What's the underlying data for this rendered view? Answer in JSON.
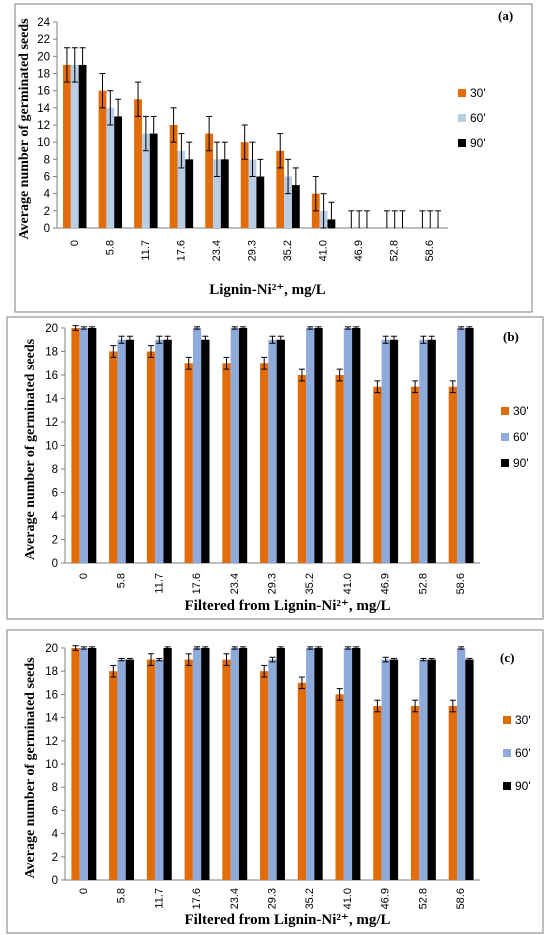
{
  "chart_data": [
    {
      "type": "bar",
      "panel_label": "(a)",
      "xlabel": "Lignin-Ni²⁺, mg/L",
      "ylabel": "Average number of germinated seeds",
      "ylim": [
        0,
        24
      ],
      "yticks": [
        0,
        2,
        4,
        6,
        8,
        10,
        12,
        14,
        16,
        18,
        20,
        22,
        24
      ],
      "categories": [
        "0",
        "5.8",
        "11.7",
        "17.6",
        "23.4",
        "29.3",
        "35.2",
        "41.0",
        "46.9",
        "52.8",
        "58.6"
      ],
      "grid": false,
      "legend_position": "right",
      "series": [
        {
          "name": "30'",
          "color": "#e36c0a",
          "values": [
            19,
            16,
            15,
            12,
            11,
            10,
            9,
            4,
            0,
            0,
            0
          ],
          "errors": [
            2,
            2,
            2,
            2,
            2,
            2,
            2,
            2,
            2,
            2,
            2
          ]
        },
        {
          "name": "60'",
          "color": "#b9cde5",
          "values": [
            19,
            14,
            11,
            9,
            8,
            8,
            6,
            2,
            0,
            0,
            0
          ],
          "errors": [
            2,
            2,
            2,
            2,
            2,
            2,
            2,
            2,
            2,
            2,
            2
          ]
        },
        {
          "name": "90'",
          "color": "#000000",
          "values": [
            19,
            13,
            11,
            8,
            8,
            6,
            5,
            1,
            0,
            0,
            0
          ],
          "errors": [
            2,
            2,
            2,
            2,
            2,
            2,
            2,
            2,
            2,
            2,
            2
          ]
        }
      ]
    },
    {
      "type": "bar",
      "panel_label": "(b)",
      "xlabel": "Filtered from Lignin-Ni²⁺, mg/L",
      "ylabel": "Average number of germinated seeds",
      "ylim": [
        0,
        20
      ],
      "yticks": [
        0,
        2,
        4,
        6,
        8,
        10,
        12,
        14,
        16,
        18,
        20
      ],
      "categories": [
        "0",
        "5.8",
        "11.7",
        "17.6",
        "23.4",
        "29.3",
        "35.2",
        "41.0",
        "46.9",
        "52.8",
        "58.6"
      ],
      "grid": false,
      "legend_position": "right",
      "series": [
        {
          "name": "30'",
          "color": "#e36c0a",
          "values": [
            20,
            18,
            18,
            17,
            17,
            17,
            16,
            16,
            15,
            15,
            15
          ],
          "errors": [
            0.2,
            0.5,
            0.5,
            0.5,
            0.5,
            0.5,
            0.5,
            0.5,
            0.5,
            0.5,
            0.5
          ]
        },
        {
          "name": "60'",
          "color": "#8eaadb",
          "values": [
            20,
            19,
            19,
            20,
            20,
            19,
            20,
            20,
            19,
            19,
            20
          ],
          "errors": [
            0.1,
            0.3,
            0.3,
            0.1,
            0.1,
            0.3,
            0.1,
            0.1,
            0.3,
            0.3,
            0.1
          ]
        },
        {
          "name": "90'",
          "color": "#000000",
          "values": [
            20,
            19,
            19,
            19,
            20,
            19,
            20,
            20,
            19,
            19,
            20
          ],
          "errors": [
            0.1,
            0.3,
            0.3,
            0.3,
            0.1,
            0.3,
            0.1,
            0.1,
            0.3,
            0.3,
            0.1
          ]
        }
      ]
    },
    {
      "type": "bar",
      "panel_label": "(c)",
      "xlabel": "Filtered from Lignin-Ni²⁺, mg/L",
      "ylabel": "Average number of germinated seeds",
      "ylim": [
        0,
        20
      ],
      "yticks": [
        0,
        2,
        4,
        6,
        8,
        10,
        12,
        14,
        16,
        18,
        20
      ],
      "categories": [
        "0",
        "5.8",
        "11.7",
        "17.6",
        "23.4",
        "29.3",
        "35.2",
        "41.0",
        "46.9",
        "52.8",
        "58.6"
      ],
      "grid": false,
      "legend_position": "right",
      "series": [
        {
          "name": "30'",
          "color": "#e36c0a",
          "values": [
            20,
            18,
            19,
            19,
            19,
            18,
            17,
            16,
            15,
            15,
            15
          ],
          "errors": [
            0.2,
            0.5,
            0.5,
            0.5,
            0.5,
            0.5,
            0.5,
            0.5,
            0.5,
            0.5,
            0.5
          ]
        },
        {
          "name": "60'",
          "color": "#8eaadb",
          "values": [
            20,
            19,
            19,
            20,
            20,
            19,
            20,
            20,
            19,
            19,
            20
          ],
          "errors": [
            0.1,
            0.1,
            0.1,
            0.1,
            0.1,
            0.2,
            0.1,
            0.1,
            0.2,
            0.1,
            0.1
          ]
        },
        {
          "name": "90'",
          "color": "#000000",
          "values": [
            20,
            19,
            20,
            20,
            20,
            20,
            20,
            20,
            19,
            19,
            19
          ],
          "errors": [
            0.1,
            0.1,
            0.1,
            0.1,
            0.1,
            0.1,
            0.1,
            0.1,
            0.1,
            0.1,
            0.1
          ]
        }
      ]
    }
  ]
}
